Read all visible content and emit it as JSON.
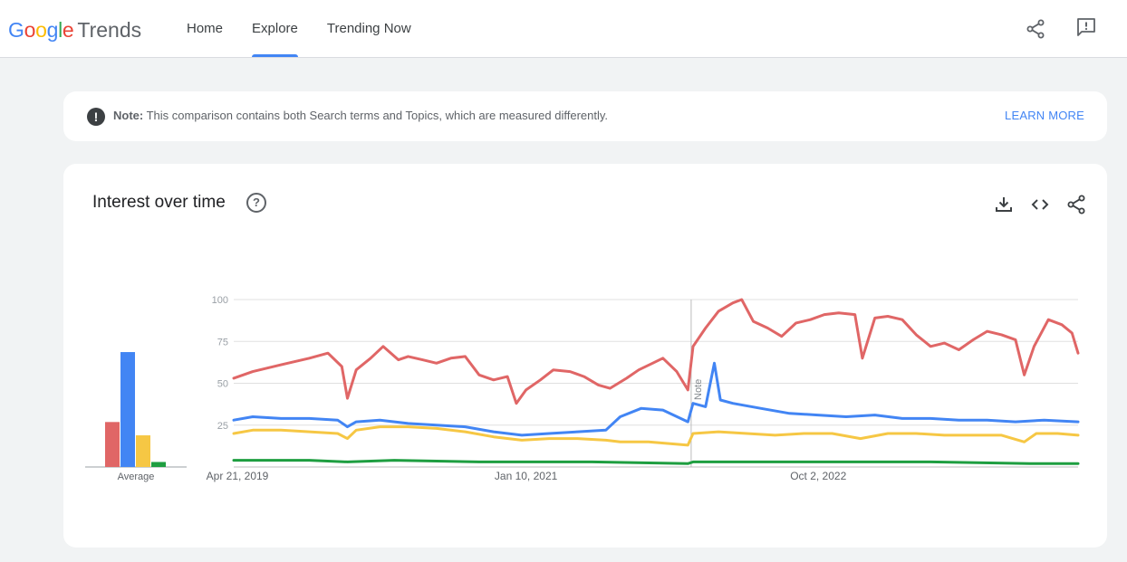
{
  "app": {
    "logo_word": "Google",
    "logo_suffix": "Trends"
  },
  "nav": {
    "home": "Home",
    "explore": "Explore",
    "trending": "Trending Now"
  },
  "header_icons": [
    "share-icon",
    "feedback-icon"
  ],
  "note": {
    "label": "Note:",
    "text": "This comparison contains both Search terms and Topics, which are measured differently.",
    "link": "LEARN MORE"
  },
  "interest_card": {
    "title": "Interest over time",
    "icons": [
      "help-icon",
      "download-icon",
      "embed-icon",
      "share-icon"
    ]
  },
  "colors": {
    "red": "#e06666",
    "blue": "#4285f4",
    "yellow": "#f6c744",
    "green": "#1e9e40",
    "accent": "#4285f4"
  },
  "chart_data": {
    "type": "line",
    "x_range": [
      "2019-04-21",
      "2024-04-14"
    ],
    "xticks": [
      "Apr 21, 2019",
      "Jan 10, 2021",
      "Oct 2, 2022"
    ],
    "ylim": [
      0,
      100
    ],
    "yticks": [
      25,
      50,
      75,
      100
    ],
    "annotation": "Note",
    "annotation_date": "2022-01-01",
    "average_label": "Average",
    "averages": [
      27,
      69,
      19,
      3
    ],
    "series": [
      {
        "color": "#e06666",
        "points": [
          [
            "2019-04-21",
            53
          ],
          [
            "2019-06-01",
            57
          ],
          [
            "2019-08-01",
            61
          ],
          [
            "2019-10-01",
            65
          ],
          [
            "2019-11-10",
            68
          ],
          [
            "2019-12-10",
            60
          ],
          [
            "2019-12-22",
            41
          ],
          [
            "2020-01-10",
            58
          ],
          [
            "2020-02-10",
            65
          ],
          [
            "2020-03-08",
            72
          ],
          [
            "2020-04-10",
            64
          ],
          [
            "2020-05-01",
            66
          ],
          [
            "2020-06-01",
            64
          ],
          [
            "2020-07-01",
            62
          ],
          [
            "2020-08-01",
            65
          ],
          [
            "2020-09-01",
            66
          ],
          [
            "2020-10-01",
            55
          ],
          [
            "2020-11-01",
            52
          ],
          [
            "2020-12-01",
            54
          ],
          [
            "2020-12-20",
            38
          ],
          [
            "2021-01-10",
            46
          ],
          [
            "2021-02-10",
            52
          ],
          [
            "2021-03-10",
            58
          ],
          [
            "2021-04-15",
            57
          ],
          [
            "2021-05-15",
            54
          ],
          [
            "2021-06-15",
            49
          ],
          [
            "2021-07-10",
            47
          ],
          [
            "2021-08-15",
            53
          ],
          [
            "2021-09-10",
            58
          ],
          [
            "2021-10-10",
            62
          ],
          [
            "2021-11-01",
            65
          ],
          [
            "2021-12-01",
            57
          ],
          [
            "2021-12-25",
            46
          ],
          [
            "2022-01-05",
            72
          ],
          [
            "2022-02-01",
            83
          ],
          [
            "2022-03-01",
            93
          ],
          [
            "2022-04-01",
            98
          ],
          [
            "2022-04-20",
            100
          ],
          [
            "2022-05-15",
            87
          ],
          [
            "2022-06-15",
            83
          ],
          [
            "2022-07-15",
            78
          ],
          [
            "2022-08-15",
            86
          ],
          [
            "2022-09-15",
            88
          ],
          [
            "2022-10-15",
            91
          ],
          [
            "2022-11-15",
            92
          ],
          [
            "2022-12-20",
            91
          ],
          [
            "2023-01-05",
            65
          ],
          [
            "2023-02-01",
            89
          ],
          [
            "2023-03-01",
            90
          ],
          [
            "2023-04-01",
            88
          ],
          [
            "2023-05-01",
            79
          ],
          [
            "2023-06-01",
            72
          ],
          [
            "2023-07-01",
            74
          ],
          [
            "2023-08-01",
            70
          ],
          [
            "2023-09-01",
            76
          ],
          [
            "2023-10-01",
            81
          ],
          [
            "2023-11-01",
            79
          ],
          [
            "2023-12-01",
            76
          ],
          [
            "2023-12-20",
            55
          ],
          [
            "2024-01-10",
            72
          ],
          [
            "2024-02-10",
            88
          ],
          [
            "2024-03-10",
            85
          ],
          [
            "2024-04-01",
            80
          ],
          [
            "2024-04-14",
            68
          ]
        ]
      },
      {
        "color": "#4285f4",
        "points": [
          [
            "2019-04-21",
            28
          ],
          [
            "2019-06-01",
            30
          ],
          [
            "2019-08-01",
            29
          ],
          [
            "2019-10-01",
            29
          ],
          [
            "2019-12-01",
            28
          ],
          [
            "2019-12-22",
            24
          ],
          [
            "2020-01-10",
            27
          ],
          [
            "2020-03-01",
            28
          ],
          [
            "2020-05-01",
            26
          ],
          [
            "2020-07-01",
            25
          ],
          [
            "2020-09-01",
            24
          ],
          [
            "2020-11-01",
            21
          ],
          [
            "2021-01-01",
            19
          ],
          [
            "2021-03-01",
            20
          ],
          [
            "2021-05-01",
            21
          ],
          [
            "2021-07-01",
            22
          ],
          [
            "2021-08-01",
            30
          ],
          [
            "2021-09-15",
            35
          ],
          [
            "2021-11-01",
            34
          ],
          [
            "2021-12-25",
            27
          ],
          [
            "2022-01-05",
            38
          ],
          [
            "2022-02-01",
            36
          ],
          [
            "2022-02-20",
            62
          ],
          [
            "2022-03-05",
            40
          ],
          [
            "2022-04-01",
            38
          ],
          [
            "2022-06-01",
            35
          ],
          [
            "2022-08-01",
            32
          ],
          [
            "2022-10-01",
            31
          ],
          [
            "2022-12-01",
            30
          ],
          [
            "2023-02-01",
            31
          ],
          [
            "2023-04-01",
            29
          ],
          [
            "2023-06-01",
            29
          ],
          [
            "2023-08-01",
            28
          ],
          [
            "2023-10-01",
            28
          ],
          [
            "2023-12-01",
            27
          ],
          [
            "2024-02-01",
            28
          ],
          [
            "2024-04-14",
            27
          ]
        ]
      },
      {
        "color": "#f6c744",
        "points": [
          [
            "2019-04-21",
            20
          ],
          [
            "2019-06-01",
            22
          ],
          [
            "2019-08-01",
            22
          ],
          [
            "2019-10-01",
            21
          ],
          [
            "2019-12-01",
            20
          ],
          [
            "2019-12-22",
            17
          ],
          [
            "2020-01-10",
            22
          ],
          [
            "2020-03-01",
            24
          ],
          [
            "2020-05-01",
            24
          ],
          [
            "2020-07-01",
            23
          ],
          [
            "2020-09-01",
            21
          ],
          [
            "2020-11-01",
            18
          ],
          [
            "2021-01-01",
            16
          ],
          [
            "2021-03-01",
            17
          ],
          [
            "2021-05-01",
            17
          ],
          [
            "2021-07-01",
            16
          ],
          [
            "2021-08-01",
            15
          ],
          [
            "2021-10-01",
            15
          ],
          [
            "2021-12-25",
            13
          ],
          [
            "2022-01-05",
            20
          ],
          [
            "2022-03-01",
            21
          ],
          [
            "2022-05-01",
            20
          ],
          [
            "2022-07-01",
            19
          ],
          [
            "2022-09-01",
            20
          ],
          [
            "2022-11-01",
            20
          ],
          [
            "2023-01-01",
            17
          ],
          [
            "2023-03-01",
            20
          ],
          [
            "2023-05-01",
            20
          ],
          [
            "2023-07-01",
            19
          ],
          [
            "2023-09-01",
            19
          ],
          [
            "2023-11-01",
            19
          ],
          [
            "2023-12-20",
            15
          ],
          [
            "2024-01-15",
            20
          ],
          [
            "2024-03-01",
            20
          ],
          [
            "2024-04-14",
            19
          ]
        ]
      },
      {
        "color": "#1e9e40",
        "points": [
          [
            "2019-04-21",
            4
          ],
          [
            "2019-10-01",
            4
          ],
          [
            "2019-12-22",
            3
          ],
          [
            "2020-04-01",
            4
          ],
          [
            "2020-10-01",
            3
          ],
          [
            "2021-06-01",
            3
          ],
          [
            "2021-12-25",
            2
          ],
          [
            "2022-01-05",
            3
          ],
          [
            "2022-06-01",
            3
          ],
          [
            "2023-01-01",
            3
          ],
          [
            "2023-06-01",
            3
          ],
          [
            "2024-01-01",
            2
          ],
          [
            "2024-04-14",
            2
          ]
        ]
      }
    ]
  }
}
